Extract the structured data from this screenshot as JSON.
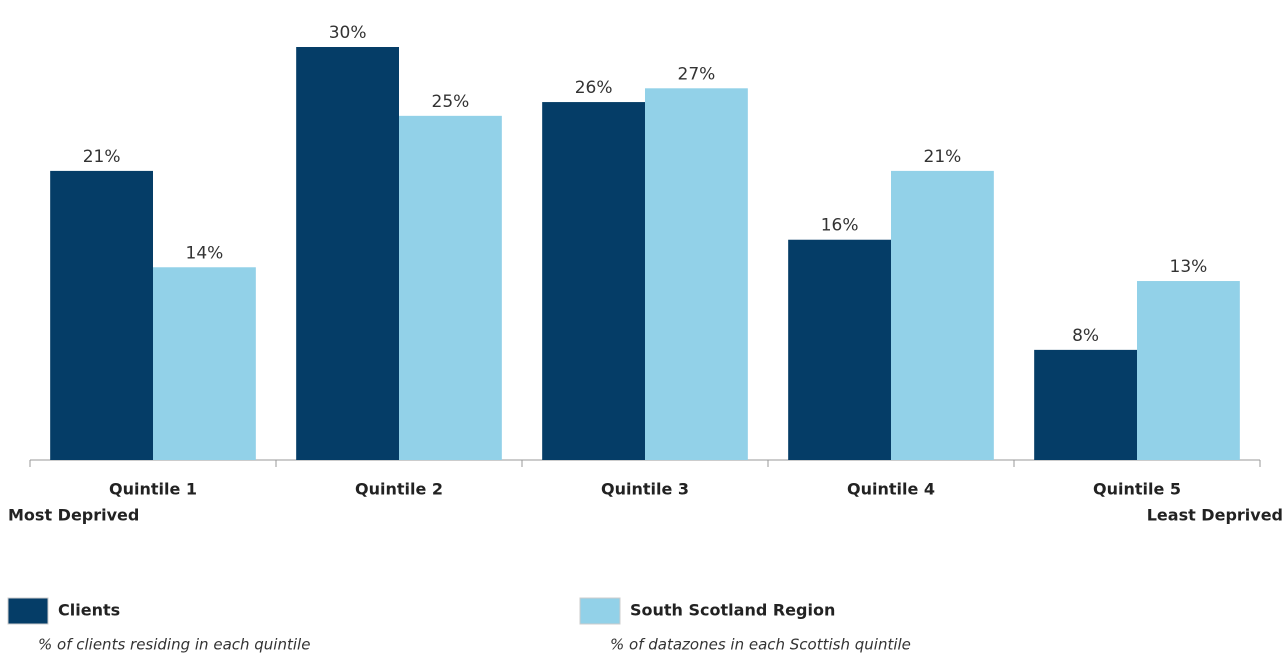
{
  "chart_data": {
    "type": "bar",
    "categories": [
      "Quintile 1",
      "Quintile 2",
      "Quintile 3",
      "Quintile 4",
      "Quintile 5"
    ],
    "annotations": [
      "Most Deprived",
      "Least Deprived"
    ],
    "series": [
      {
        "name": "Clients",
        "description": "% of clients residing in each quintile",
        "color": "#053d67",
        "values": [
          21,
          30,
          26,
          16,
          8
        ],
        "value_labels": [
          "21%",
          "30%",
          "26%",
          "16%",
          "8%"
        ]
      },
      {
        "name": "South Scotland Region",
        "description": "% of datazones in each Scottish quintile",
        "color": "#92d1e8",
        "values": [
          14,
          25,
          27,
          21,
          13
        ],
        "value_labels": [
          "14%",
          "25%",
          "27%",
          "21%",
          "13%"
        ]
      }
    ]
  }
}
